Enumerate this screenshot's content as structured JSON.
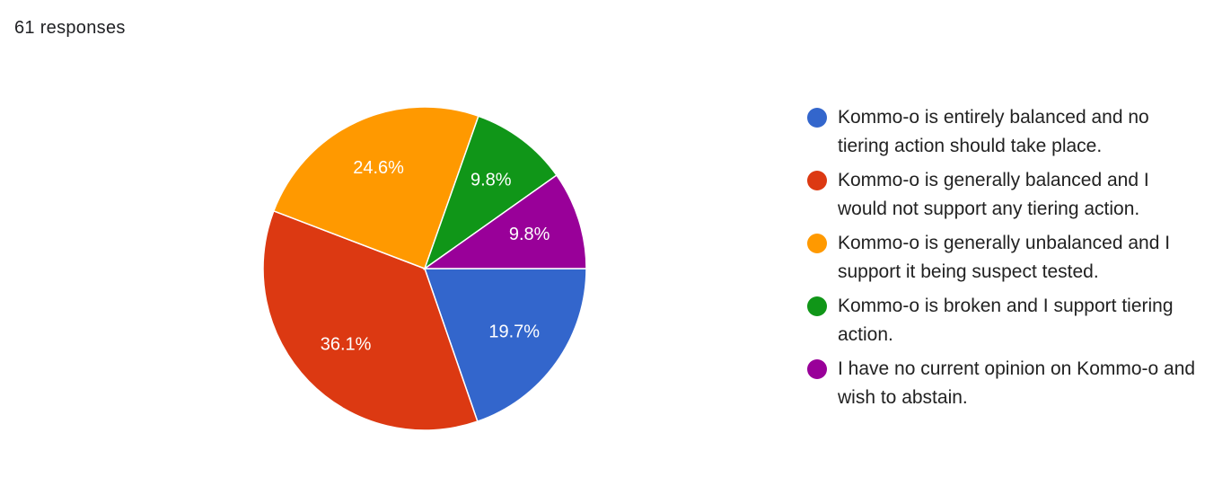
{
  "chart_data": {
    "type": "pie",
    "subtitle": "61 responses",
    "categories": [
      "Kommo-o is entirely balanced and no tiering action should take place.",
      "Kommo-o is generally balanced and I would not support any tiering action.",
      "Kommo-o is generally unbalanced and I support it being suspect tested.",
      "Kommo-o is broken and I support tiering action.",
      "I have no current opinion on Kommo-o and wish to abstain."
    ],
    "values": [
      19.7,
      36.1,
      24.6,
      9.8,
      9.8
    ],
    "value_labels": [
      "19.7%",
      "36.1%",
      "24.6%",
      "9.8%",
      "9.8%"
    ],
    "colors": [
      "#3366cc",
      "#dc3912",
      "#ff9900",
      "#109618",
      "#990099"
    ],
    "legend": "right"
  }
}
